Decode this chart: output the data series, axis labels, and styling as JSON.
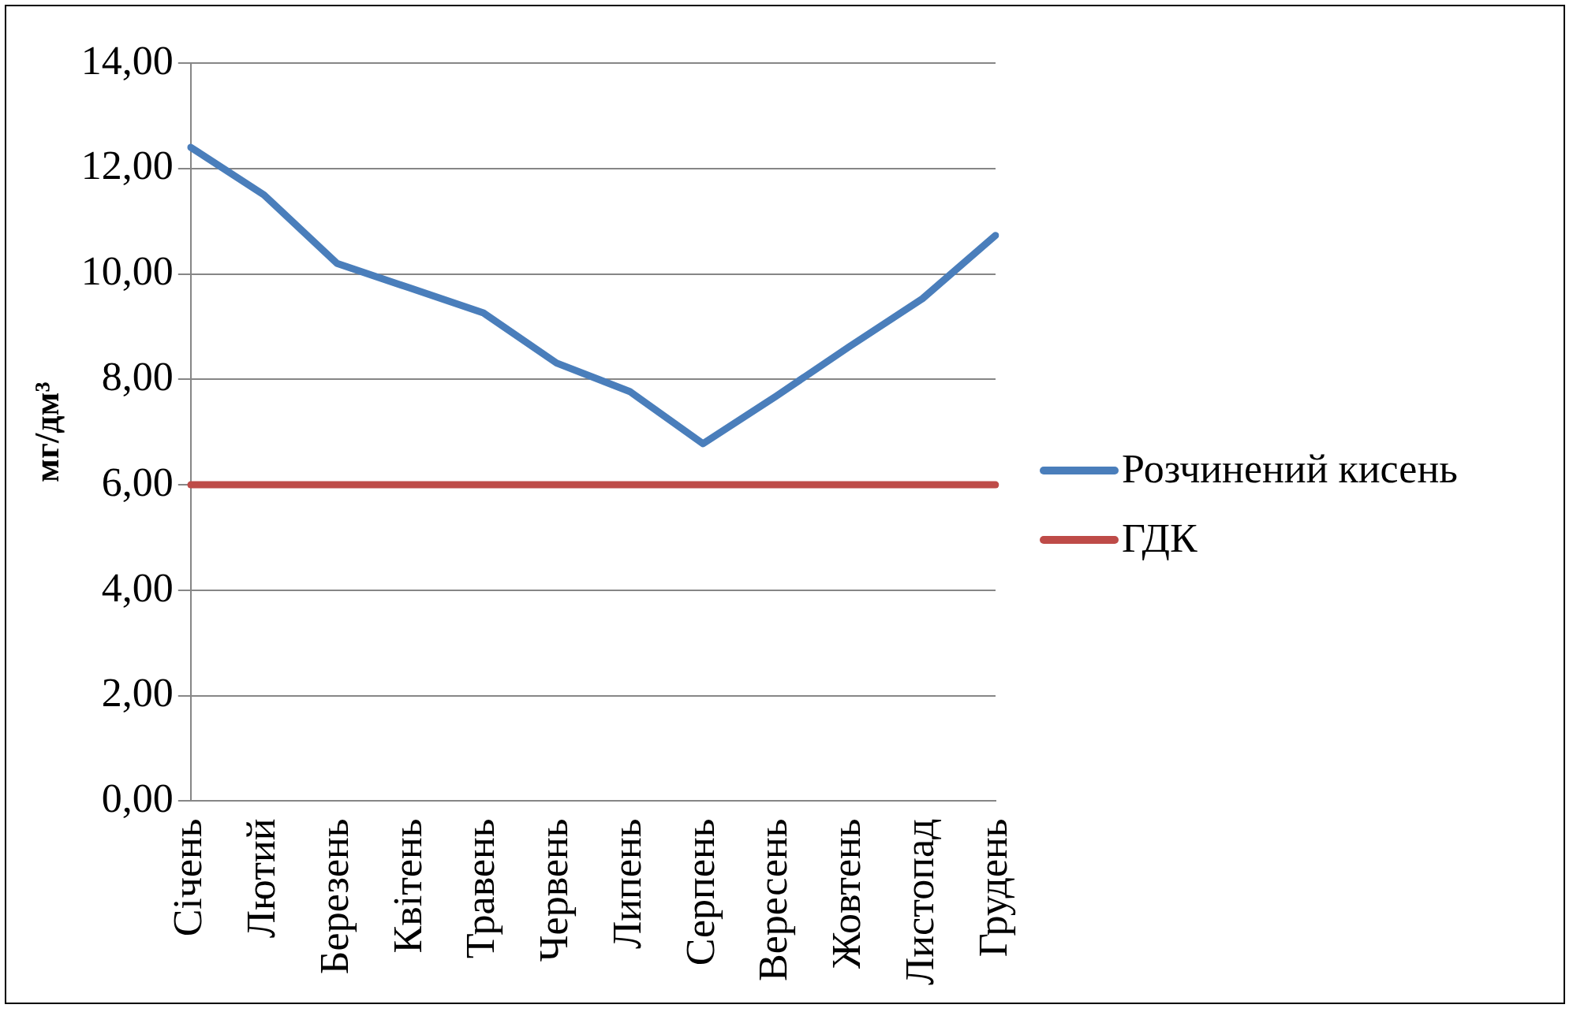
{
  "chart_data": {
    "type": "line",
    "ylabel": "мг/дм³",
    "categories": [
      "Січень",
      "Лютий",
      "Березень",
      "Квітень",
      "Травень",
      "Червень",
      "Липень",
      "Серпень",
      "Вересень",
      "Жовтень",
      "Листопад",
      "Грудень"
    ],
    "series": [
      {
        "name": "Розчинений кисень",
        "color": "#4a7ebb",
        "values": [
          12.4,
          11.5,
          10.2,
          9.73,
          9.26,
          8.31,
          7.77,
          6.78,
          7.68,
          8.62,
          9.53,
          10.73
        ]
      },
      {
        "name": "ГДК",
        "color": "#be4b48",
        "values": [
          6,
          6,
          6,
          6,
          6,
          6,
          6,
          6,
          6,
          6,
          6,
          6
        ]
      }
    ],
    "ylim": [
      0,
      14
    ],
    "yticks": [
      {
        "value": 0,
        "label": "0,00"
      },
      {
        "value": 2,
        "label": "2,00"
      },
      {
        "value": 4,
        "label": "4,00"
      },
      {
        "value": 6,
        "label": "6,00"
      },
      {
        "value": 8,
        "label": "8,00"
      },
      {
        "value": 10,
        "label": "10,00"
      },
      {
        "value": 12,
        "label": "12,00"
      },
      {
        "value": 14,
        "label": "14,00"
      }
    ],
    "grid": "y",
    "legend": "right",
    "marker": "none",
    "line_style": "solid"
  }
}
